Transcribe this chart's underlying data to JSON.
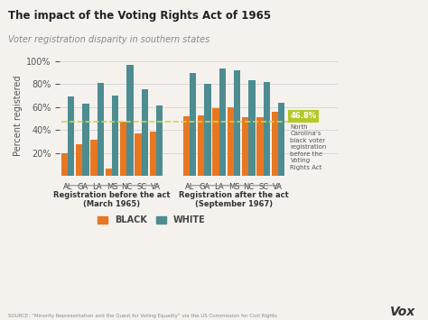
{
  "title": "The impact of the Voting Rights Act of 1965",
  "subtitle": "Voter registration disparity in southern states",
  "states": [
    "AL",
    "GA",
    "LA",
    "MS",
    "NC",
    "SC",
    "VA"
  ],
  "before_black": [
    19.3,
    27.4,
    31.6,
    6.7,
    46.8,
    37.3,
    38.3
  ],
  "before_white": [
    69.2,
    62.6,
    80.5,
    69.9,
    96.8,
    75.7,
    61.1
  ],
  "after_black": [
    51.6,
    52.6,
    58.9,
    59.8,
    51.3,
    51.4,
    55.6
  ],
  "after_white": [
    89.6,
    80.3,
    93.1,
    91.5,
    83.0,
    81.7,
    63.4
  ],
  "color_black": "#e87722",
  "color_white": "#4d8c91",
  "color_dashed": "#c8d44e",
  "dashed_value": 46.8,
  "annotation_value": "46.8%",
  "annotation_text": "North\nCarolina’s\nblack voter\nregistration\nbefore the\nVoting\nRights Act",
  "annotation_bg": "#b5c82a",
  "ylabel": "Percent registered",
  "group1_label": "Registration before the act\n(March 1965)",
  "group2_label": "Registration after the act\n(September 1967)",
  "legend_black": "BLACK",
  "legend_white": "WHITE",
  "source": "SOURCE: “Minority Representation and the Quest for Voting Equality” via the US Commission for Civil Rights",
  "vox_text": "Vox",
  "bg_color": "#f5f2ee",
  "ylim": [
    0,
    105
  ]
}
